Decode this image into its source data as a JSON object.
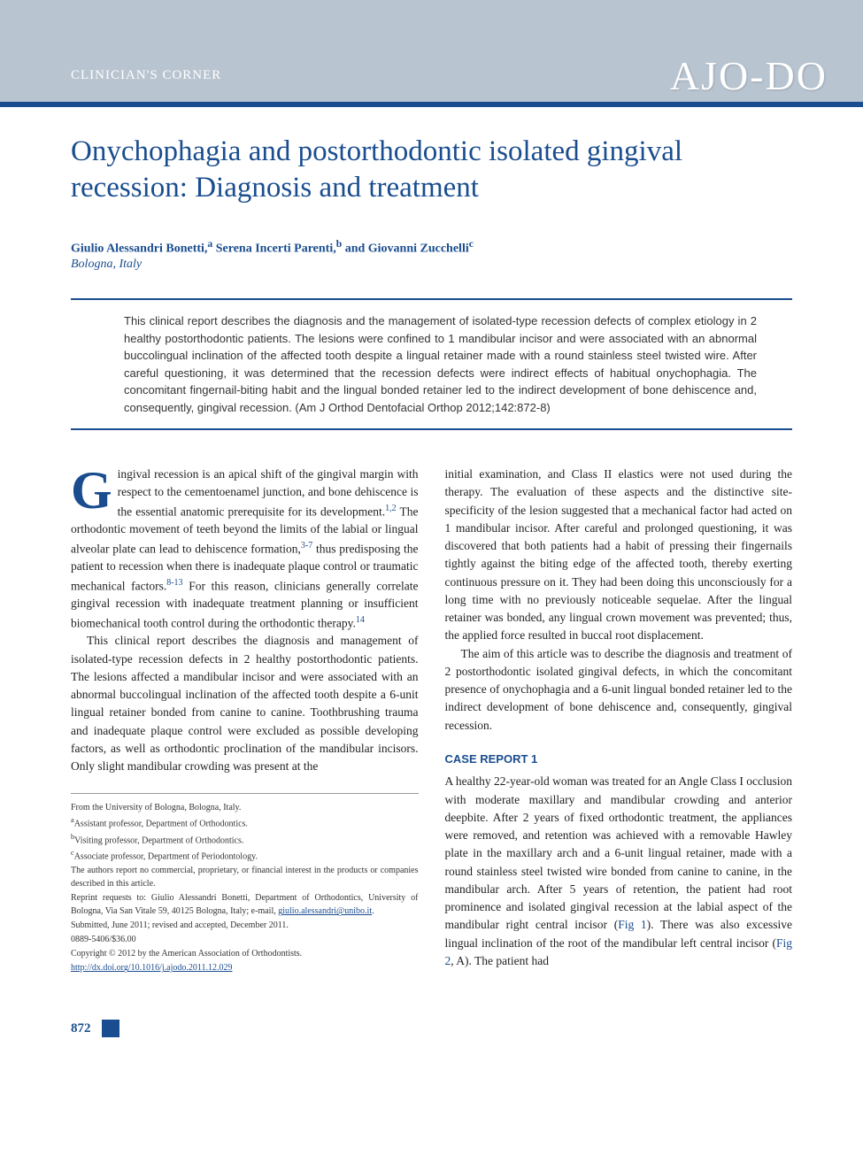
{
  "colors": {
    "header_bg": "#b8c4d0",
    "accent": "#1a4d8f",
    "text": "#222222",
    "footnote_text": "#333333",
    "white": "#ffffff"
  },
  "typography": {
    "title_fontsize": 33,
    "body_fontsize": 13.5,
    "abstract_fontsize": 13,
    "footnote_fontsize": 10,
    "logo_fontsize": 46
  },
  "header": {
    "section_label": "CLINICIAN'S CORNER",
    "journal_logo": "AJO-DO"
  },
  "article": {
    "title": "Onychophagia and postorthodontic isolated gingival recession: Diagnosis and treatment",
    "authors_html": "Giulio Alessandri Bonetti,<sup>a</sup> Serena Incerti Parenti,<sup>b</sup> and Giovanni Zucchelli<sup>c</sup>",
    "affiliation": "Bologna, Italy",
    "abstract": "This clinical report describes the diagnosis and the management of isolated-type recession defects of complex etiology in 2 healthy postorthodontic patients. The lesions were confined to 1 mandibular incisor and were associated with an abnormal buccolingual inclination of the affected tooth despite a lingual retainer made with a round stainless steel twisted wire. After careful questioning, it was determined that the recession defects were indirect effects of habitual onychophagia. The concomitant fingernail-biting habit and the lingual bonded retainer led to the indirect development of bone dehiscence and, consequently, gingival recession. (Am J Orthod Dentofacial Orthop 2012;142:872-8)"
  },
  "body": {
    "col1": {
      "dropcap": "G",
      "p1_rest": "ingival recession is an apical shift of the gingival margin with respect to the cementoenamel junction, and bone dehiscence is the essential anatomic prerequisite for its development.",
      "p1_ref1": "1,2",
      "p1_cont": " The orthodontic movement of teeth beyond the limits of the labial or lingual alveolar plate can lead to dehiscence formation,",
      "p1_ref2": "3-7",
      "p1_cont2": " thus predisposing the patient to recession when there is inadequate plaque control or traumatic mechanical factors.",
      "p1_ref3": "8-13",
      "p1_cont3": " For this reason, clinicians generally correlate gingival recession with inadequate treatment planning or insufficient biomechanical tooth control during the orthodontic therapy.",
      "p1_ref4": "14",
      "p2": "This clinical report describes the diagnosis and management of isolated-type recession defects in 2 healthy postorthodontic patients. The lesions affected a mandibular incisor and were associated with an abnormal buccolingual inclination of the affected tooth despite a 6-unit lingual retainer bonded from canine to canine. Toothbrushing trauma and inadequate plaque control were excluded as possible developing factors, as well as orthodontic proclination of the mandibular incisors. Only slight mandibular crowding was present at the"
    },
    "col2": {
      "p1": "initial examination, and Class II elastics were not used during the therapy. The evaluation of these aspects and the distinctive site-specificity of the lesion suggested that a mechanical factor had acted on 1 mandibular incisor. After careful and prolonged questioning, it was discovered that both patients had a habit of pressing their fingernails tightly against the biting edge of the affected tooth, thereby exerting continuous pressure on it. They had been doing this unconsciously for a long time with no previously noticeable sequelae. After the lingual retainer was bonded, any lingual crown movement was prevented; thus, the applied force resulted in buccal root displacement.",
      "p2": "The aim of this article was to describe the diagnosis and treatment of 2 postorthodontic isolated gingival defects, in which the concomitant presence of onychophagia and a 6-unit lingual bonded retainer led to the indirect development of bone dehiscence and, consequently, gingival recession.",
      "case_heading": "CASE REPORT 1",
      "case_p1a": "A healthy 22-year-old woman was treated for an Angle Class I occlusion with moderate maxillary and mandibular crowding and anterior deepbite. After 2 years of fixed orthodontic treatment, the appliances were removed, and retention was achieved with a removable Hawley plate in the maxillary arch and a 6-unit lingual retainer, made with a round stainless steel twisted wire bonded from canine to canine, in the mandibular arch. After 5 years of retention, the patient had root prominence and isolated gingival recession at the labial aspect of the mandibular right central incisor (",
      "fig1": "Fig 1",
      "case_p1b": "). There was also excessive lingual inclination of the root of the mandibular left central incisor (",
      "fig2": "Fig 2",
      "case_p1c": ", A). The patient had"
    }
  },
  "footnotes": {
    "from": "From the University of Bologna, Bologna, Italy.",
    "a": "Assistant professor, Department of Orthodontics.",
    "b": "Visiting professor, Department of Orthodontics.",
    "c": "Associate professor, Department of Periodontology.",
    "conflict": "The authors report no commercial, proprietary, or financial interest in the products or companies described in this article.",
    "reprint1": "Reprint requests to: Giulio Alessandri Bonetti, Department of Orthodontics, University of Bologna, Via San Vitale 59, 40125 Bologna, Italy; e-mail, ",
    "email": "giulio.alessandri@unibo.it",
    "submitted": "Submitted, June 2011; revised and accepted, December 2011.",
    "issn": "0889-5406/$36.00",
    "copyright": "Copyright © 2012 by the American Association of Orthodontists.",
    "doi": "http://dx.doi.org/10.1016/j.ajodo.2011.12.029"
  },
  "footer": {
    "page_number": "872"
  }
}
